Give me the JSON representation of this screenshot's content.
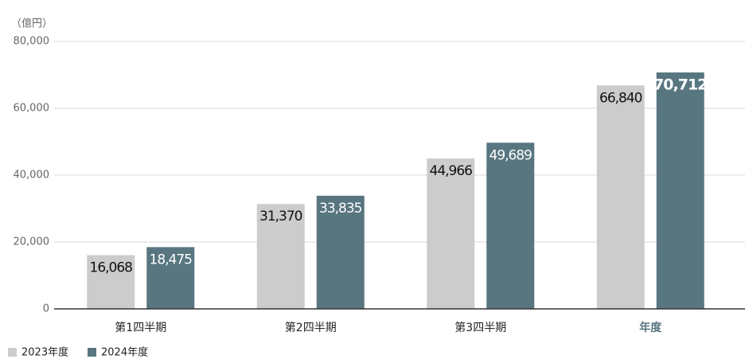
{
  "chart_data": {
    "type": "bar",
    "y_axis_label": "（億円）",
    "categories": [
      "第1四半期",
      "第2四半期",
      "第3四半期",
      "年度"
    ],
    "series": [
      {
        "name": "2023年度",
        "color": "#cccccc",
        "values": [
          16068,
          31370,
          44966,
          66840
        ],
        "value_labels": [
          "16,068",
          "31,370",
          "44,966",
          "66,840"
        ]
      },
      {
        "name": "2024年度",
        "color": "#587680",
        "values": [
          18475,
          33835,
          49689,
          70712
        ],
        "value_labels": [
          "18,475",
          "33,835",
          "49,689",
          "70,712"
        ]
      }
    ],
    "ylim": [
      0,
      80000
    ],
    "yticks": [
      0,
      {
        "value": 20000,
        "label": "20,000"
      },
      {
        "value": 40000,
        "label": "40,000"
      },
      {
        "value": 60000,
        "label": "60,000"
      },
      {
        "value": 80000,
        "label": "80,000"
      }
    ],
    "grid": true
  }
}
